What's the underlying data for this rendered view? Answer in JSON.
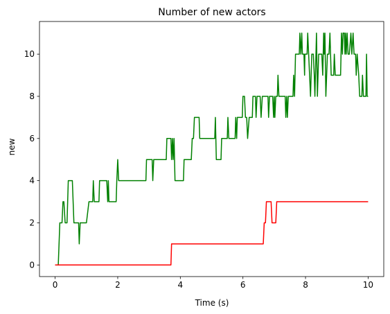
{
  "chart_data": {
    "type": "line",
    "title": "Number of new actors",
    "xlabel": "Time (s)",
    "ylabel": "new",
    "xlim": [
      -0.5,
      10.5
    ],
    "ylim": [
      -0.55,
      11.55
    ],
    "xticks": [
      0,
      2,
      4,
      6,
      8,
      10
    ],
    "yticks": [
      0,
      2,
      4,
      6,
      8,
      10
    ],
    "grid": false,
    "series": [
      {
        "color": "#008000",
        "points": [
          [
            0,
            0
          ],
          [
            0.1,
            0
          ],
          [
            0.15,
            2
          ],
          [
            0.22,
            2
          ],
          [
            0.25,
            3
          ],
          [
            0.28,
            3
          ],
          [
            0.32,
            2
          ],
          [
            0.38,
            2
          ],
          [
            0.42,
            4
          ],
          [
            0.55,
            4
          ],
          [
            0.6,
            2
          ],
          [
            0.75,
            2
          ],
          [
            0.77,
            1
          ],
          [
            0.8,
            2
          ],
          [
            1.0,
            2
          ],
          [
            1.08,
            3
          ],
          [
            1.2,
            3
          ],
          [
            1.22,
            4
          ],
          [
            1.25,
            3
          ],
          [
            1.4,
            3
          ],
          [
            1.42,
            4
          ],
          [
            1.65,
            4
          ],
          [
            1.68,
            3
          ],
          [
            1.7,
            4
          ],
          [
            1.72,
            3
          ],
          [
            1.95,
            3
          ],
          [
            1.97,
            4
          ],
          [
            2.0,
            5
          ],
          [
            2.03,
            4
          ],
          [
            2.9,
            4
          ],
          [
            2.92,
            5
          ],
          [
            3.1,
            5
          ],
          [
            3.12,
            4
          ],
          [
            3.15,
            5
          ],
          [
            3.55,
            5
          ],
          [
            3.57,
            6
          ],
          [
            3.7,
            6
          ],
          [
            3.72,
            5
          ],
          [
            3.75,
            6
          ],
          [
            3.77,
            5
          ],
          [
            3.8,
            6
          ],
          [
            3.83,
            4
          ],
          [
            4.1,
            4
          ],
          [
            4.12,
            5
          ],
          [
            4.35,
            5
          ],
          [
            4.38,
            6
          ],
          [
            4.42,
            6
          ],
          [
            4.45,
            7
          ],
          [
            4.6,
            7
          ],
          [
            4.62,
            6
          ],
          [
            5.1,
            6
          ],
          [
            5.12,
            7
          ],
          [
            5.15,
            5
          ],
          [
            5.3,
            5
          ],
          [
            5.32,
            6
          ],
          [
            5.5,
            6
          ],
          [
            5.52,
            7
          ],
          [
            5.55,
            6
          ],
          [
            5.75,
            6
          ],
          [
            5.77,
            7
          ],
          [
            5.8,
            6
          ],
          [
            5.82,
            7
          ],
          [
            5.98,
            7
          ],
          [
            6.0,
            8
          ],
          [
            6.05,
            8
          ],
          [
            6.08,
            7
          ],
          [
            6.12,
            7
          ],
          [
            6.15,
            6
          ],
          [
            6.2,
            7
          ],
          [
            6.3,
            7
          ],
          [
            6.32,
            8
          ],
          [
            6.4,
            8
          ],
          [
            6.42,
            7
          ],
          [
            6.45,
            8
          ],
          [
            6.55,
            8
          ],
          [
            6.58,
            7
          ],
          [
            6.62,
            8
          ],
          [
            6.8,
            8
          ],
          [
            6.82,
            7
          ],
          [
            6.85,
            8
          ],
          [
            6.95,
            8
          ],
          [
            6.98,
            7
          ],
          [
            7.0,
            8
          ],
          [
            7.02,
            7
          ],
          [
            7.05,
            8
          ],
          [
            7.1,
            8
          ],
          [
            7.12,
            9
          ],
          [
            7.15,
            8
          ],
          [
            7.35,
            8
          ],
          [
            7.37,
            7
          ],
          [
            7.4,
            8
          ],
          [
            7.42,
            7
          ],
          [
            7.45,
            8
          ],
          [
            7.6,
            8
          ],
          [
            7.62,
            9
          ],
          [
            7.65,
            8
          ],
          [
            7.68,
            10
          ],
          [
            7.8,
            10
          ],
          [
            7.82,
            11
          ],
          [
            7.85,
            10
          ],
          [
            7.88,
            11
          ],
          [
            7.9,
            10
          ],
          [
            7.95,
            10
          ],
          [
            7.97,
            9
          ],
          [
            7.98,
            10
          ],
          [
            8.05,
            10
          ],
          [
            8.07,
            11
          ],
          [
            8.1,
            10
          ],
          [
            8.13,
            9
          ],
          [
            8.16,
            8
          ],
          [
            8.2,
            10
          ],
          [
            8.25,
            10
          ],
          [
            8.28,
            9
          ],
          [
            8.3,
            8
          ],
          [
            8.35,
            11
          ],
          [
            8.38,
            8
          ],
          [
            8.42,
            10
          ],
          [
            8.52,
            10
          ],
          [
            8.55,
            9
          ],
          [
            8.58,
            11
          ],
          [
            8.6,
            10
          ],
          [
            8.62,
            11
          ],
          [
            8.65,
            8
          ],
          [
            8.7,
            10
          ],
          [
            8.75,
            10
          ],
          [
            8.78,
            11
          ],
          [
            8.82,
            9
          ],
          [
            8.9,
            9
          ],
          [
            8.92,
            10
          ],
          [
            8.95,
            9
          ],
          [
            9.12,
            9
          ],
          [
            9.15,
            11
          ],
          [
            9.18,
            10
          ],
          [
            9.2,
            11
          ],
          [
            9.24,
            11
          ],
          [
            9.26,
            10
          ],
          [
            9.28,
            11
          ],
          [
            9.3,
            10
          ],
          [
            9.33,
            11
          ],
          [
            9.36,
            10
          ],
          [
            9.4,
            10
          ],
          [
            9.45,
            11
          ],
          [
            9.48,
            10
          ],
          [
            9.52,
            11
          ],
          [
            9.55,
            10
          ],
          [
            9.6,
            10
          ],
          [
            9.62,
            9
          ],
          [
            9.65,
            10
          ],
          [
            9.7,
            9
          ],
          [
            9.73,
            8
          ],
          [
            9.8,
            8
          ],
          [
            9.82,
            9
          ],
          [
            9.85,
            8
          ],
          [
            9.93,
            8
          ],
          [
            9.95,
            10
          ],
          [
            9.97,
            8
          ],
          [
            10.0,
            8
          ]
        ]
      },
      {
        "color": "#ff0000",
        "points": [
          [
            0,
            0
          ],
          [
            3.7,
            0
          ],
          [
            3.72,
            1
          ],
          [
            6.65,
            1
          ],
          [
            6.68,
            2
          ],
          [
            6.72,
            2
          ],
          [
            6.75,
            3
          ],
          [
            6.9,
            3
          ],
          [
            6.93,
            2
          ],
          [
            7.05,
            2
          ],
          [
            7.08,
            3
          ],
          [
            10.0,
            3
          ]
        ]
      }
    ]
  }
}
